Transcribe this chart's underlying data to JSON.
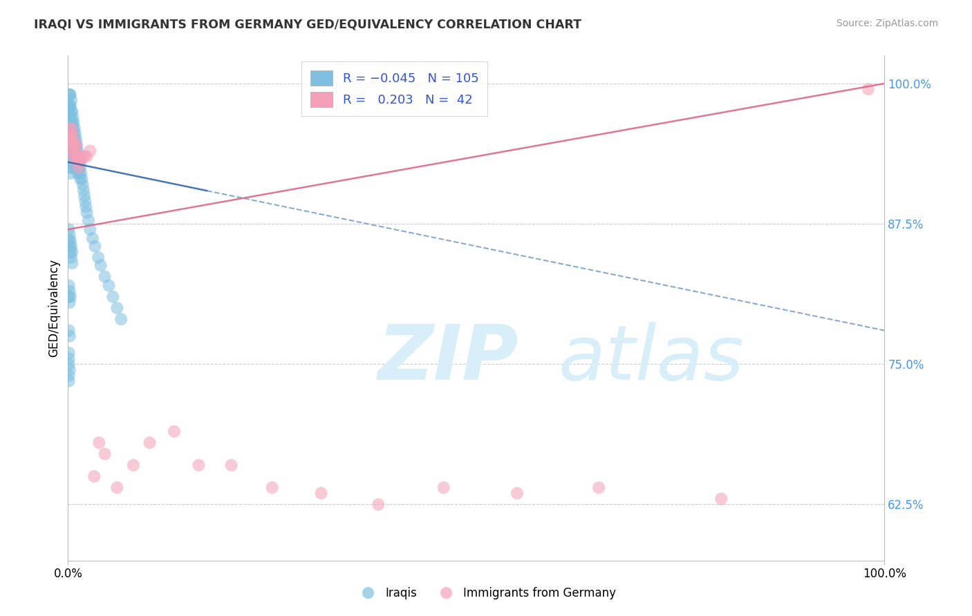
{
  "title": "IRAQI VS IMMIGRANTS FROM GERMANY GED/EQUIVALENCY CORRELATION CHART",
  "source": "Source: ZipAtlas.com",
  "ylabel": "GED/Equivalency",
  "xlim": [
    0.0,
    1.0
  ],
  "ylim": [
    0.575,
    1.025
  ],
  "yticks": [
    0.625,
    0.75,
    0.875,
    1.0
  ],
  "ytick_labels": [
    "62.5%",
    "75.0%",
    "87.5%",
    "100.0%"
  ],
  "blue_color": "#7fbfdf",
  "pink_color": "#f4a0b8",
  "blue_line_color": "#5588bb",
  "blue_line_color_solid": "#3366aa",
  "pink_line_color": "#dd6688",
  "watermark_zip": "ZIP",
  "watermark_atlas": "atlas",
  "watermark_color": "#d8eef8",
  "background_color": "#ffffff",
  "grid_color": "#cccccc",
  "blue_trend_x": [
    0.0,
    1.0
  ],
  "blue_trend_y": [
    0.93,
    0.78
  ],
  "pink_trend_x": [
    0.0,
    1.0
  ],
  "pink_trend_y": [
    0.87,
    1.0
  ],
  "iraqis_x": [
    0.001,
    0.001,
    0.001,
    0.001,
    0.002,
    0.002,
    0.002,
    0.002,
    0.002,
    0.002,
    0.002,
    0.003,
    0.003,
    0.003,
    0.003,
    0.003,
    0.003,
    0.003,
    0.003,
    0.004,
    0.004,
    0.004,
    0.004,
    0.004,
    0.004,
    0.004,
    0.005,
    0.005,
    0.005,
    0.005,
    0.005,
    0.005,
    0.006,
    0.006,
    0.006,
    0.006,
    0.006,
    0.007,
    0.007,
    0.007,
    0.007,
    0.007,
    0.008,
    0.008,
    0.008,
    0.008,
    0.009,
    0.009,
    0.009,
    0.01,
    0.01,
    0.01,
    0.011,
    0.011,
    0.011,
    0.012,
    0.012,
    0.012,
    0.013,
    0.013,
    0.014,
    0.014,
    0.015,
    0.015,
    0.016,
    0.017,
    0.018,
    0.019,
    0.02,
    0.021,
    0.022,
    0.023,
    0.025,
    0.027,
    0.03,
    0.033,
    0.037,
    0.04,
    0.045,
    0.05,
    0.055,
    0.06,
    0.065,
    0.001,
    0.001,
    0.002,
    0.002,
    0.003,
    0.003,
    0.004,
    0.004,
    0.005,
    0.005,
    0.001,
    0.001,
    0.002,
    0.002,
    0.003,
    0.001,
    0.002,
    0.001,
    0.001,
    0.001,
    0.002,
    0.001,
    0.001
  ],
  "iraqis_y": [
    0.99,
    0.98,
    0.97,
    0.96,
    0.99,
    0.98,
    0.97,
    0.96,
    0.95,
    0.94,
    0.93,
    0.99,
    0.98,
    0.97,
    0.96,
    0.95,
    0.94,
    0.93,
    0.92,
    0.985,
    0.975,
    0.965,
    0.955,
    0.945,
    0.935,
    0.925,
    0.975,
    0.965,
    0.955,
    0.945,
    0.935,
    0.925,
    0.97,
    0.96,
    0.95,
    0.94,
    0.93,
    0.965,
    0.955,
    0.945,
    0.935,
    0.925,
    0.96,
    0.95,
    0.94,
    0.93,
    0.955,
    0.945,
    0.935,
    0.95,
    0.94,
    0.93,
    0.945,
    0.935,
    0.925,
    0.94,
    0.93,
    0.92,
    0.935,
    0.925,
    0.93,
    0.92,
    0.925,
    0.915,
    0.92,
    0.915,
    0.91,
    0.905,
    0.9,
    0.895,
    0.89,
    0.885,
    0.878,
    0.87,
    0.862,
    0.855,
    0.845,
    0.838,
    0.828,
    0.82,
    0.81,
    0.8,
    0.79,
    0.87,
    0.86,
    0.865,
    0.855,
    0.86,
    0.85,
    0.855,
    0.845,
    0.85,
    0.84,
    0.82,
    0.81,
    0.815,
    0.805,
    0.81,
    0.78,
    0.775,
    0.76,
    0.755,
    0.75,
    0.745,
    0.74,
    0.735
  ],
  "germany_x": [
    0.001,
    0.002,
    0.003,
    0.003,
    0.004,
    0.004,
    0.005,
    0.005,
    0.006,
    0.006,
    0.007,
    0.007,
    0.008,
    0.008,
    0.009,
    0.01,
    0.01,
    0.011,
    0.012,
    0.013,
    0.015,
    0.017,
    0.02,
    0.023,
    0.027,
    0.032,
    0.038,
    0.045,
    0.06,
    0.08,
    0.1,
    0.13,
    0.16,
    0.2,
    0.25,
    0.31,
    0.38,
    0.46,
    0.55,
    0.65,
    0.8,
    0.98
  ],
  "germany_y": [
    0.95,
    0.96,
    0.955,
    0.945,
    0.96,
    0.95,
    0.955,
    0.945,
    0.95,
    0.94,
    0.945,
    0.935,
    0.945,
    0.935,
    0.94,
    0.945,
    0.93,
    0.935,
    0.935,
    0.925,
    0.93,
    0.935,
    0.935,
    0.935,
    0.94,
    0.65,
    0.68,
    0.67,
    0.64,
    0.66,
    0.68,
    0.69,
    0.66,
    0.66,
    0.64,
    0.635,
    0.625,
    0.64,
    0.635,
    0.64,
    0.63,
    0.995
  ]
}
